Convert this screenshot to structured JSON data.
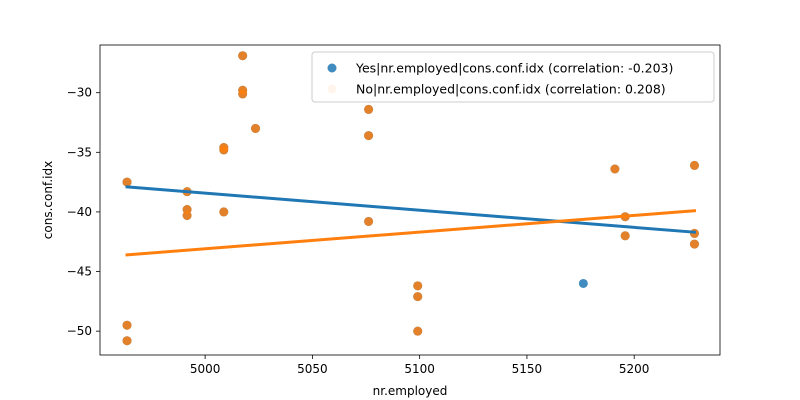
{
  "chart_data": {
    "type": "scatter",
    "title": "",
    "xlabel": "nr.employed",
    "ylabel": "cons.conf.idx",
    "xlim": [
      4951,
      5240
    ],
    "ylim": [
      -52,
      -26
    ],
    "xticks": [
      5000,
      5050,
      5100,
      5150,
      5200
    ],
    "yticks": [
      -50,
      -45,
      -40,
      -35,
      -30
    ],
    "grid": false,
    "legend_position": "top-right",
    "series": [
      {
        "name": "Yes|nr.employed|cons.conf.idx (correlation: -0.203)",
        "color": "#1f77b4",
        "points": [
          [
            4963.6,
            -37.5
          ],
          [
            4963.6,
            -49.5
          ],
          [
            4963.6,
            -50.8
          ],
          [
            4991.6,
            -38.3
          ],
          [
            4991.6,
            -39.8
          ],
          [
            4991.6,
            -40.3
          ],
          [
            5008.7,
            -34.6
          ],
          [
            5008.7,
            -34.8
          ],
          [
            5008.7,
            -40.0
          ],
          [
            5017.5,
            -26.9
          ],
          [
            5017.5,
            -29.8
          ],
          [
            5017.5,
            -30.1
          ],
          [
            5023.5,
            -33.0
          ],
          [
            5076.2,
            -31.4
          ],
          [
            5076.2,
            -33.6
          ],
          [
            5076.2,
            -40.8
          ],
          [
            5099.1,
            -46.2
          ],
          [
            5099.1,
            -47.1
          ],
          [
            5099.1,
            -50.0
          ],
          [
            5176.3,
            -46.0
          ],
          [
            5191.0,
            -36.4
          ],
          [
            5195.8,
            -40.4
          ],
          [
            5195.8,
            -42.0
          ],
          [
            5228.1,
            -36.1
          ],
          [
            5228.1,
            -41.8
          ],
          [
            5228.1,
            -42.7
          ]
        ],
        "trend": [
          [
            4963.6,
            -37.9
          ],
          [
            5228.1,
            -41.7
          ]
        ]
      },
      {
        "name": "No|nr.employed|cons.conf.idx (correlation: 0.208)",
        "color": "#ff7f0e",
        "points": [
          [
            4963.6,
            -37.5
          ],
          [
            4963.6,
            -49.5
          ],
          [
            4963.6,
            -50.8
          ],
          [
            4991.6,
            -38.3
          ],
          [
            4991.6,
            -39.8
          ],
          [
            4991.6,
            -40.3
          ],
          [
            5008.7,
            -34.6
          ],
          [
            5008.7,
            -34.8
          ],
          [
            5008.7,
            -40.0
          ],
          [
            5017.5,
            -26.9
          ],
          [
            5017.5,
            -29.8
          ],
          [
            5017.5,
            -30.1
          ],
          [
            5023.5,
            -33.0
          ],
          [
            5076.2,
            -31.4
          ],
          [
            5076.2,
            -33.6
          ],
          [
            5076.2,
            -40.8
          ],
          [
            5099.1,
            -46.2
          ],
          [
            5099.1,
            -47.1
          ],
          [
            5099.1,
            -50.0
          ],
          [
            5191.0,
            -36.4
          ],
          [
            5195.8,
            -40.4
          ],
          [
            5195.8,
            -42.0
          ],
          [
            5228.1,
            -36.1
          ],
          [
            5228.1,
            -41.8
          ],
          [
            5228.1,
            -42.7
          ]
        ],
        "trend": [
          [
            4963.6,
            -43.6
          ],
          [
            5228.1,
            -39.9
          ]
        ]
      }
    ]
  }
}
